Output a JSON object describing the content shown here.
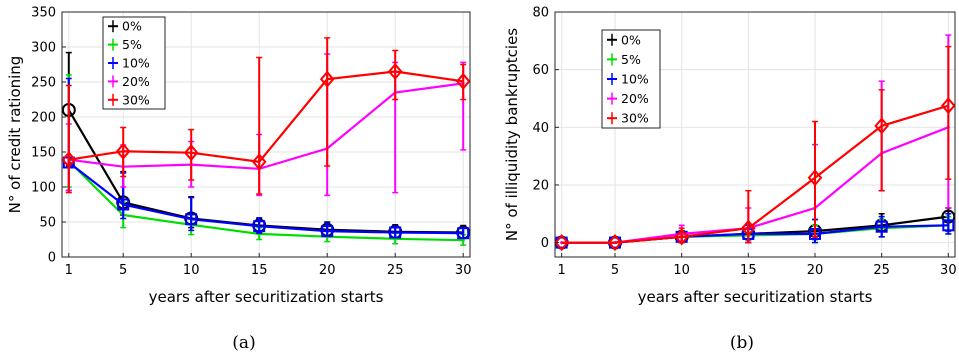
{
  "chart_data": [
    {
      "type": "line",
      "caption": "(a)",
      "xlabel": "years after securitization starts",
      "ylabel": "N° of credit rationing",
      "x": [
        1,
        5,
        10,
        15,
        20,
        25,
        30
      ],
      "xticks": [
        1,
        5,
        10,
        15,
        20,
        25,
        30
      ],
      "xlim": [
        0.5,
        30.5
      ],
      "ylim": [
        0,
        350
      ],
      "yticks": [
        0,
        50,
        100,
        150,
        200,
        250,
        300,
        350
      ],
      "grid": true,
      "legend": "top-left",
      "series": [
        {
          "name": "0%",
          "color": "#000000",
          "marker": "circle",
          "values": [
            210,
            78,
            55,
            45,
            39,
            36,
            35
          ],
          "err": [
            [
              130,
              292
            ],
            [
              60,
              122
            ],
            [
              42,
              86
            ],
            [
              36,
              55
            ],
            [
              30,
              50
            ],
            [
              28,
              46
            ],
            [
              27,
              45
            ]
          ]
        },
        {
          "name": "5%",
          "color": "#00dd00",
          "marker": "none",
          "values": [
            137,
            60,
            46,
            33,
            29,
            26,
            24
          ],
          "err": [
            [
              100,
              260
            ],
            [
              42,
              78
            ],
            [
              32,
              60
            ],
            [
              25,
              42
            ],
            [
              22,
              37
            ],
            [
              19,
              34
            ],
            [
              17,
              32
            ]
          ]
        },
        {
          "name": "10%",
          "color": "#0000ff",
          "marker": "square",
          "values": [
            135,
            75,
            54,
            44,
            37,
            35,
            34
          ],
          "err": [
            [
              95,
              255
            ],
            [
              55,
              120
            ],
            [
              38,
              85
            ],
            [
              34,
              56
            ],
            [
              30,
              48
            ],
            [
              28,
              44
            ],
            [
              27,
              42
            ]
          ]
        },
        {
          "name": "20%",
          "color": "#ff00ff",
          "marker": "none",
          "values": [
            139,
            129,
            132,
            126,
            155,
            235,
            248
          ],
          "err": [
            [
              95,
              190
            ],
            [
              100,
              160
            ],
            [
              100,
              165
            ],
            [
              88,
              175
            ],
            [
              88,
              290
            ],
            [
              92,
              278
            ],
            [
              153,
              278
            ]
          ]
        },
        {
          "name": "30%",
          "color": "#ff0000",
          "marker": "diamond",
          "values": [
            139,
            151,
            149,
            136,
            254,
            265,
            251
          ],
          "err": [
            [
              92,
              245
            ],
            [
              115,
              185
            ],
            [
              110,
              182
            ],
            [
              90,
              285
            ],
            [
              130,
              313
            ],
            [
              225,
              295
            ],
            [
              225,
              275
            ]
          ]
        }
      ]
    },
    {
      "type": "line",
      "caption": "(b)",
      "xlabel": "years after securitization starts",
      "ylabel": "N° of illiquidity bankruptcies",
      "x": [
        1,
        5,
        10,
        15,
        20,
        25,
        30
      ],
      "xticks": [
        1,
        5,
        10,
        15,
        20,
        25,
        30
      ],
      "xlim": [
        0.5,
        30.5
      ],
      "ylim": [
        -5,
        80
      ],
      "yticks": [
        0,
        20,
        40,
        60,
        80
      ],
      "grid": true,
      "legend": "top-left",
      "series": [
        {
          "name": "0%",
          "color": "#000000",
          "marker": "circle",
          "values": [
            0,
            0,
            2,
            3,
            4,
            6,
            9
          ],
          "err": [
            [
              0,
              0
            ],
            [
              0,
              0
            ],
            [
              0,
              4
            ],
            [
              0,
              6
            ],
            [
              1,
              8
            ],
            [
              2,
              10
            ],
            [
              4,
              12
            ]
          ]
        },
        {
          "name": "5%",
          "color": "#00dd00",
          "marker": "none",
          "values": [
            0,
            0,
            2,
            2.5,
            3,
            5,
            6
          ],
          "err": [
            [
              0,
              0
            ],
            [
              0,
              0
            ],
            [
              0,
              4
            ],
            [
              0,
              5
            ],
            [
              1,
              6
            ],
            [
              2,
              8
            ],
            [
              3,
              9
            ]
          ]
        },
        {
          "name": "10%",
          "color": "#0000ff",
          "marker": "square",
          "values": [
            0,
            0,
            2,
            3,
            3,
            5.5,
            6
          ],
          "err": [
            [
              0,
              0
            ],
            [
              0,
              0
            ],
            [
              0,
              4
            ],
            [
              0,
              6
            ],
            [
              0,
              8
            ],
            [
              2,
              9
            ],
            [
              3,
              10
            ]
          ]
        },
        {
          "name": "20%",
          "color": "#ff00ff",
          "marker": "none",
          "values": [
            0,
            0,
            3,
            5,
            12,
            31,
            40
          ],
          "err": [
            [
              0,
              0
            ],
            [
              0,
              0
            ],
            [
              0,
              6
            ],
            [
              0,
              12
            ],
            [
              2,
              34
            ],
            [
              18,
              56
            ],
            [
              12,
              72
            ]
          ]
        },
        {
          "name": "30%",
          "color": "#ff0000",
          "marker": "diamond",
          "values": [
            0,
            0,
            2,
            5,
            22.5,
            40.5,
            47.5
          ],
          "err": [
            [
              0,
              0
            ],
            [
              0,
              0
            ],
            [
              0,
              5
            ],
            [
              0,
              18
            ],
            [
              2,
              42
            ],
            [
              18,
              53
            ],
            [
              22,
              68
            ]
          ]
        }
      ]
    }
  ]
}
